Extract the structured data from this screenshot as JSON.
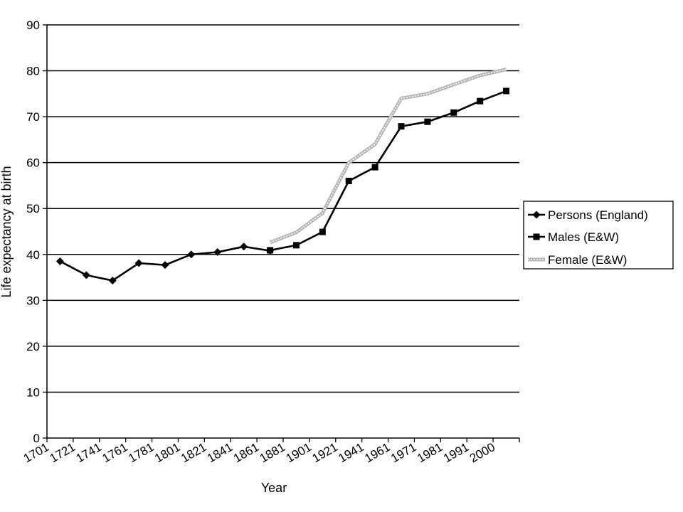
{
  "chart_data": {
    "type": "line",
    "xlabel": "Year",
    "ylabel": "Life expectancy at birth",
    "ylim": [
      0,
      90
    ],
    "yticks": [
      0,
      10,
      20,
      30,
      40,
      50,
      60,
      70,
      80,
      90
    ],
    "categories": [
      "1701",
      "1721",
      "1741",
      "1761",
      "1781",
      "1801",
      "1821",
      "1841",
      "1861",
      "1881",
      "1901",
      "1921",
      "1941",
      "1961",
      "1971",
      "1981",
      "1991",
      "2000"
    ],
    "grid": true,
    "legend_position": "right",
    "series": [
      {
        "name": "Persons (England)",
        "marker": "diamond",
        "color": "#000000",
        "points": [
          {
            "pos": 0.5,
            "value": 38.5
          },
          {
            "pos": 1.5,
            "value": 35.5
          },
          {
            "pos": 2.5,
            "value": 34.3
          },
          {
            "pos": 3.5,
            "value": 38.1
          },
          {
            "pos": 4.5,
            "value": 37.7
          },
          {
            "pos": 5.5,
            "value": 40.0
          },
          {
            "pos": 6.5,
            "value": 40.5
          },
          {
            "pos": 7.5,
            "value": 41.7
          },
          {
            "pos": 8.5,
            "value": 40.8
          }
        ]
      },
      {
        "name": "Males (E&W)",
        "marker": "square",
        "color": "#000000",
        "points": [
          {
            "pos": 8.5,
            "value": 40.9
          },
          {
            "pos": 9.5,
            "value": 42.0
          },
          {
            "pos": 10.5,
            "value": 44.9
          },
          {
            "pos": 11.5,
            "value": 56.0
          },
          {
            "pos": 12.5,
            "value": 59.0
          },
          {
            "pos": 13.5,
            "value": 67.9
          },
          {
            "pos": 14.5,
            "value": 68.9
          },
          {
            "pos": 15.5,
            "value": 70.9
          },
          {
            "pos": 16.5,
            "value": 73.4
          },
          {
            "pos": 17.5,
            "value": 75.6
          }
        ]
      },
      {
        "name": "Female (E&W)",
        "marker": "none",
        "color": "#9a9a9a",
        "points": [
          {
            "pos": 8.5,
            "value": 42.6
          },
          {
            "pos": 9.5,
            "value": 44.8
          },
          {
            "pos": 10.5,
            "value": 49.0
          },
          {
            "pos": 11.5,
            "value": 60.0
          },
          {
            "pos": 12.5,
            "value": 64.0
          },
          {
            "pos": 13.5,
            "value": 74.0
          },
          {
            "pos": 14.5,
            "value": 75.0
          },
          {
            "pos": 15.5,
            "value": 77.0
          },
          {
            "pos": 16.5,
            "value": 79.0
          },
          {
            "pos": 17.5,
            "value": 80.3
          }
        ]
      }
    ]
  }
}
